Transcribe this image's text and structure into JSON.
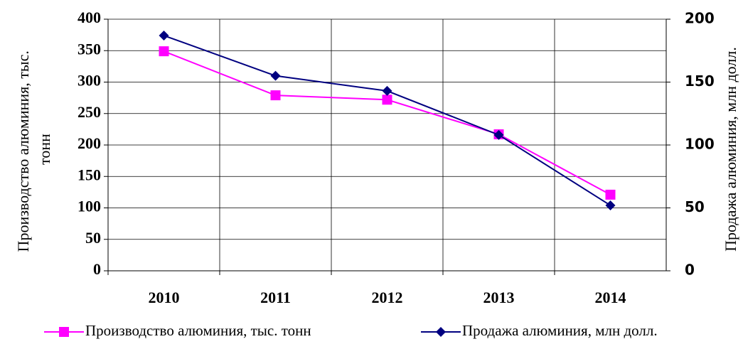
{
  "chart_data": {
    "type": "line",
    "categories": [
      "2010",
      "2011",
      "2012",
      "2013",
      "2014"
    ],
    "y_label": "Производство алюминия, тыс. тонн",
    "y2_label": "Продажа алюминия, млн долл.",
    "series": [
      {
        "name": "Производство алюминия, тыс. тонн",
        "color": "#ff00ff",
        "marker": "square",
        "values": [
          349,
          279,
          272,
          217,
          121
        ]
      },
      {
        "name": "Продажа алюминия, млн долл.",
        "color": "#000080",
        "marker": "diamond",
        "axis": "y2",
        "values": [
          187,
          155,
          143,
          108,
          52
        ]
      }
    ],
    "ylim": [
      0,
      400
    ],
    "yticks": [
      0,
      50,
      100,
      150,
      200,
      250,
      300,
      350,
      400
    ],
    "y2lim": [
      0,
      200
    ],
    "y2ticks": [
      0,
      50,
      100,
      150,
      200
    ],
    "grid": true,
    "legend": "bottom"
  }
}
